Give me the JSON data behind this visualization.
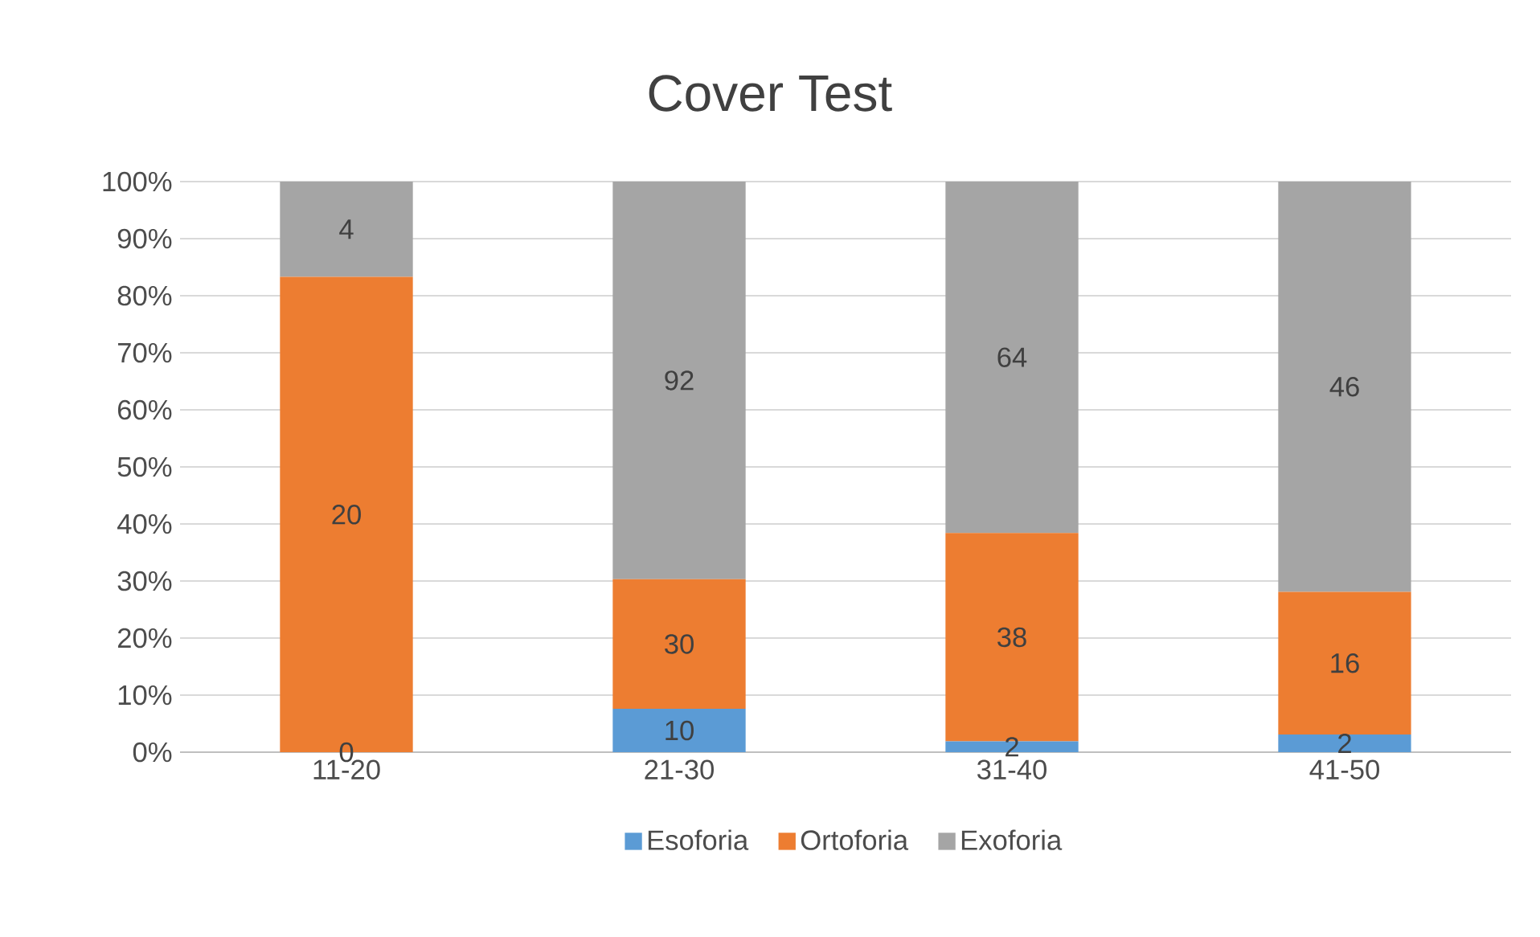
{
  "chart_data": {
    "type": "bar",
    "title": "Cover Test",
    "stacked": true,
    "categories": [
      "11-20",
      "21-30",
      "31-40",
      "41-50"
    ],
    "series": [
      {
        "name": "Esoforia",
        "color": "#5b9bd5",
        "values": [
          0,
          7.6,
          1.9,
          3.1
        ]
      },
      {
        "name": "Ortoforia",
        "color": "#ed7d31",
        "values": [
          83.3,
          22.7,
          36.5,
          25
        ]
      },
      {
        "name": "Exoforia",
        "color": "#a5a5a5",
        "values": [
          16.7,
          69.7,
          61.6,
          71.9
        ]
      }
    ],
    "annotations": [
      "0",
      "20",
      "4",
      "10",
      "30",
      "92",
      "2",
      "38",
      "64",
      "2",
      "16",
      "46"
    ],
    "ylim": [
      0,
      100
    ],
    "yticks": [
      {
        "value": 0,
        "label": "0%"
      },
      {
        "value": 10,
        "label": "10%"
      },
      {
        "value": 20,
        "label": "20%"
      },
      {
        "value": 30,
        "label": "30%"
      },
      {
        "value": 40,
        "label": "40%"
      },
      {
        "value": 50,
        "label": "50%"
      },
      {
        "value": 60,
        "label": "60%"
      },
      {
        "value": 70,
        "label": "70%"
      },
      {
        "value": 80,
        "label": "80%"
      },
      {
        "value": 90,
        "label": "90%"
      },
      {
        "value": 100,
        "label": "100%"
      }
    ],
    "grid": "y",
    "legend": "bottom"
  }
}
